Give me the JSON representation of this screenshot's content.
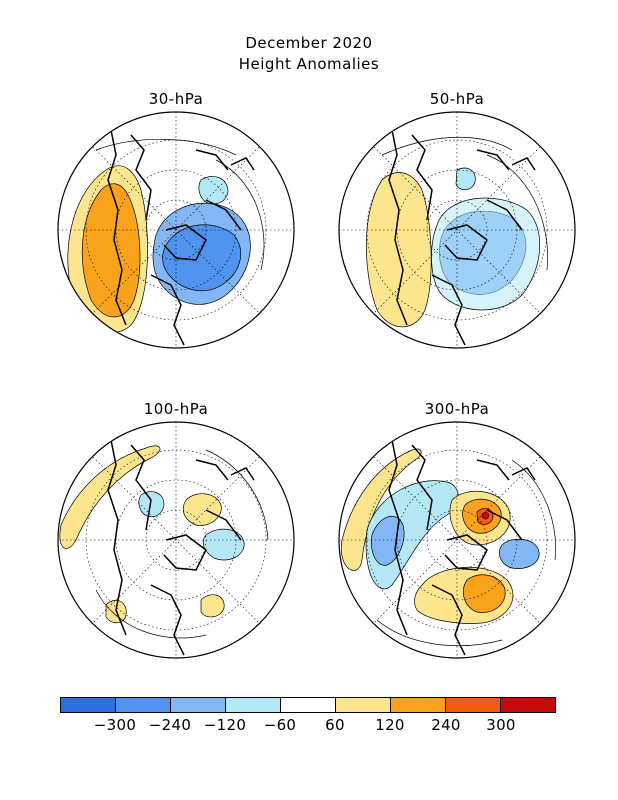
{
  "title_line1": "December 2020",
  "title_line2": "Height Anomalies",
  "panels": {
    "p30": {
      "label": "30-hPa"
    },
    "p50": {
      "label": "50-hPa"
    },
    "p100": {
      "label": "100-hPa"
    },
    "p300": {
      "label": "300-hPa"
    }
  },
  "colorbar": {
    "colors": [
      "#2a6fe0",
      "#4f93ee",
      "#82b6f5",
      "#b5e8f7",
      "#ffffff",
      "#fde58e",
      "#f9a21b",
      "#f35a14",
      "#c30b0b"
    ],
    "tick_labels": [
      "-300",
      "-240",
      "-120",
      "-60",
      "60",
      "120",
      "240",
      "300"
    ]
  }
}
